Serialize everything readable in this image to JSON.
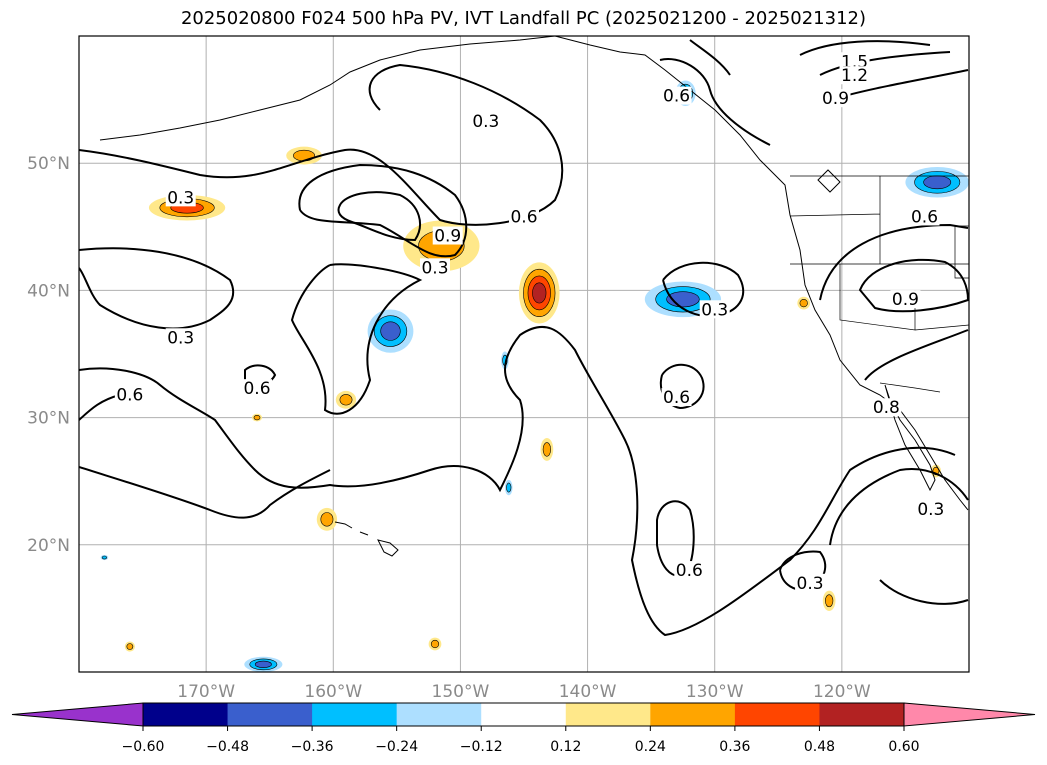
{
  "title": "2025020800 F024 500 hPa PV, IVT Landfall PC (2025021200 - 2025021312)",
  "map": {
    "projection": "PlateCarree",
    "lon_range": [
      -180,
      -110
    ],
    "lat_range": [
      10,
      60
    ],
    "gridlines": true,
    "lon_ticks": [
      {
        "value": -170,
        "label": "170°W"
      },
      {
        "value": -160,
        "label": "160°W"
      },
      {
        "value": -150,
        "label": "150°W"
      },
      {
        "value": -140,
        "label": "140°W"
      },
      {
        "value": -130,
        "label": "130°W"
      },
      {
        "value": -120,
        "label": "120°W"
      }
    ],
    "lat_ticks": [
      {
        "value": 50,
        "label": "50°N"
      },
      {
        "value": 40,
        "label": "40°N"
      },
      {
        "value": 30,
        "label": "30°N"
      },
      {
        "value": 20,
        "label": "20°N"
      }
    ],
    "contour_labels": [
      {
        "text": "0.3",
        "lon": -172,
        "lat": 47
      },
      {
        "text": "0.3",
        "lon": -148,
        "lat": 53
      },
      {
        "text": "0.6",
        "lon": -145,
        "lat": 45.5
      },
      {
        "text": "0.9",
        "lon": -151,
        "lat": 44
      },
      {
        "text": "0.3",
        "lon": -152,
        "lat": 41.5
      },
      {
        "text": "0.3",
        "lon": -172,
        "lat": 36
      },
      {
        "text": "0.6",
        "lon": -176,
        "lat": 31.5
      },
      {
        "text": "0.6",
        "lon": -166,
        "lat": 32
      },
      {
        "text": "0.3",
        "lon": -130,
        "lat": 38.2
      },
      {
        "text": "0.6",
        "lon": -133,
        "lat": 31.3
      },
      {
        "text": "0.6",
        "lon": -132,
        "lat": 17.7
      },
      {
        "text": "0.3",
        "lon": -122.5,
        "lat": 16.7
      },
      {
        "text": "0.3",
        "lon": -113,
        "lat": 22.5
      },
      {
        "text": "0.9",
        "lon": -115,
        "lat": 39
      },
      {
        "text": "0.6",
        "lon": -113.5,
        "lat": 45.5
      },
      {
        "text": "0.6",
        "lon": -133,
        "lat": 55
      },
      {
        "text": "1.5",
        "lon": -119,
        "lat": 57.7
      },
      {
        "text": "1.2",
        "lon": -119,
        "lat": 56.6
      },
      {
        "text": "0.9",
        "lon": -120.5,
        "lat": 54.8
      },
      {
        "text": "0.8",
        "lon": -116.5,
        "lat": 30.5
      }
    ],
    "features": [
      {
        "kind": "positive",
        "lon": -171.5,
        "lat": 46.5,
        "rx": 3.0,
        "ry": 1.0,
        "level": 0.36
      },
      {
        "kind": "positive",
        "lon": -162.3,
        "lat": 50.6,
        "rx": 1.4,
        "ry": 0.7,
        "level": 0.24
      },
      {
        "kind": "positive",
        "lon": -151.5,
        "lat": 43.5,
        "rx": 3.0,
        "ry": 2.0,
        "level": 0.24
      },
      {
        "kind": "positive",
        "lon": -143.8,
        "lat": 39.8,
        "rx": 1.6,
        "ry": 2.4,
        "level": 0.48
      },
      {
        "kind": "positive",
        "lon": -159,
        "lat": 31.4,
        "rx": 0.8,
        "ry": 0.7,
        "level": 0.24
      },
      {
        "kind": "positive",
        "lon": -160.5,
        "lat": 22.0,
        "rx": 0.8,
        "ry": 0.9,
        "level": 0.24
      },
      {
        "kind": "positive",
        "lon": -143.2,
        "lat": 27.5,
        "rx": 0.5,
        "ry": 0.9,
        "level": 0.24
      },
      {
        "kind": "positive",
        "lon": -121,
        "lat": 15.6,
        "rx": 0.5,
        "ry": 0.8,
        "level": 0.24
      },
      {
        "kind": "positive",
        "lon": -123,
        "lat": 39.0,
        "rx": 0.5,
        "ry": 0.5,
        "level": 0.24
      },
      {
        "kind": "positive",
        "lon": -112.6,
        "lat": 25.8,
        "rx": 0.4,
        "ry": 0.5,
        "level": 0.24
      },
      {
        "kind": "positive",
        "lon": -166,
        "lat": 30.0,
        "rx": 0.4,
        "ry": 0.3,
        "level": 0.24
      },
      {
        "kind": "positive",
        "lon": -176,
        "lat": 12.0,
        "rx": 0.4,
        "ry": 0.4,
        "level": 0.24
      },
      {
        "kind": "positive",
        "lon": -152,
        "lat": 12.2,
        "rx": 0.5,
        "ry": 0.5,
        "level": 0.24
      },
      {
        "kind": "negative",
        "lon": -155.5,
        "lat": 36.8,
        "rx": 1.8,
        "ry": 1.7,
        "level": -0.36
      },
      {
        "kind": "negative",
        "lon": -132.5,
        "lat": 39.3,
        "rx": 3.0,
        "ry": 1.4,
        "level": -0.36
      },
      {
        "kind": "negative",
        "lon": -112.5,
        "lat": 48.5,
        "rx": 2.5,
        "ry": 1.2,
        "level": -0.36
      },
      {
        "kind": "negative",
        "lon": -132.3,
        "lat": 55.5,
        "rx": 0.8,
        "ry": 1.0,
        "level": -0.36
      },
      {
        "kind": "negative",
        "lon": -146.5,
        "lat": 34.5,
        "rx": 0.3,
        "ry": 0.7,
        "level": -0.24
      },
      {
        "kind": "negative",
        "lon": -146.2,
        "lat": 24.5,
        "rx": 0.3,
        "ry": 0.6,
        "level": -0.24
      },
      {
        "kind": "negative",
        "lon": -178,
        "lat": 19.0,
        "rx": 0.3,
        "ry": 0.2,
        "level": -0.24
      },
      {
        "kind": "negative",
        "lon": -165.5,
        "lat": 10.6,
        "rx": 1.5,
        "ry": 0.6,
        "level": -0.36
      }
    ]
  },
  "colorbar": {
    "ticks": [
      "−0.60",
      "−0.48",
      "−0.36",
      "−0.24",
      "−0.12",
      "0.12",
      "0.24",
      "0.36",
      "0.48",
      "0.60"
    ],
    "colors": [
      "#9932CC",
      "#00008B",
      "#3A5FCD",
      "#00BFFF",
      "#ADDFFF",
      "#FFFFFF",
      "#FFE88A",
      "#FFA500",
      "#FF4500",
      "#B22222",
      "#FF88AA"
    ]
  }
}
